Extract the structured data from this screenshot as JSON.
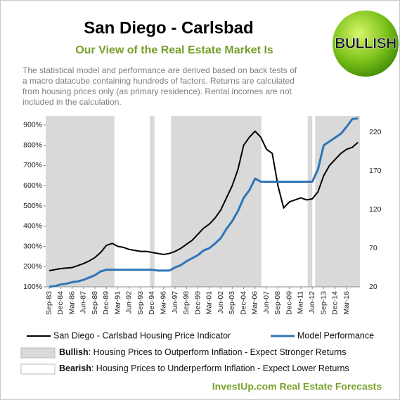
{
  "chart_data": {
    "type": "line",
    "title": "San Diego - Carlsbad",
    "subtitle": "Our View of the Real Estate Market Is",
    "badge": "BULLISH",
    "description": [
      "The  statistical model and performance  are derived  based on back tests of",
      "a macro datacube containing hundreds of factors. Returns are calculated",
      "from housing prices only (as primary residence). Rental incomes are not",
      "included in the calculation."
    ],
    "footer": "InvestUp.com  Real Estate Forecasts",
    "categories": [
      "Sep-83",
      null,
      "Dec-84",
      null,
      "Mar-86",
      null,
      "Jun-87",
      null,
      "Sep-88",
      null,
      "Dec-89",
      null,
      "Mar-91",
      null,
      "Jun-92",
      null,
      "Sep-93",
      null,
      "Dec-94",
      null,
      "Mar-96",
      null,
      "Jun-97",
      null,
      "Sep-98",
      null,
      "Dec-99",
      null,
      "Mar-01",
      null,
      "Jun-02",
      null,
      "Sep-03",
      null,
      "Dec-04",
      null,
      "Mar-06",
      null,
      "Jun-07",
      null,
      "Sep-08",
      null,
      "Dec-09",
      null,
      "Mar-11",
      null,
      "Jun-12",
      null,
      "Sep-13",
      null,
      "Dec-14",
      null,
      "Mar-16",
      null,
      null
    ],
    "series": [
      {
        "name": "San Diego - Carlsbad Housing Price Indicator",
        "color": "#000000",
        "axis": "y",
        "values": [
          180,
          185,
          190,
          193,
          195,
          205,
          215,
          228,
          245,
          270,
          305,
          315,
          300,
          295,
          285,
          280,
          275,
          275,
          270,
          265,
          260,
          265,
          275,
          290,
          310,
          330,
          360,
          390,
          410,
          440,
          480,
          540,
          600,
          680,
          800,
          840,
          870,
          840,
          780,
          760,
          600,
          490,
          520,
          530,
          540,
          530,
          535,
          570,
          650,
          700,
          730,
          760,
          780,
          790,
          815
        ]
      },
      {
        "name": "Model Performance",
        "color": "#2e75b6",
        "axis": "y2",
        "values": [
          20,
          21,
          23,
          24,
          26,
          27,
          29,
          32,
          35,
          40,
          42,
          42,
          42,
          42,
          42,
          42,
          42,
          42,
          42,
          41,
          41,
          41,
          45,
          48,
          53,
          57,
          61,
          67,
          70,
          76,
          83,
          95,
          105,
          118,
          135,
          145,
          160,
          156,
          156,
          156,
          156,
          156,
          156,
          156,
          156,
          156,
          156,
          172,
          203,
          208,
          213,
          218,
          227,
          237,
          238
        ]
      }
    ],
    "regions": [
      {
        "name": "Bullish",
        "description": ":  Housing Prices to Outperform Inflation  - Expect Stronger Returns",
        "color": "#d9d9d9",
        "periods": [
          [
            -0.6,
            11.4
          ],
          [
            17.6,
            18.4
          ],
          [
            21.3,
            37.1
          ],
          [
            45.2,
            46.0
          ],
          [
            46.5,
            54.4
          ]
        ]
      },
      {
        "name": "Bearish",
        "description": ":  Housing Prices to Underperform Inflation  - Expect Lower Returns",
        "color": "#ffffff",
        "periods": []
      }
    ],
    "ylim": [
      100,
      945
    ],
    "yticks": [
      {
        "value": 100,
        "label": "100%"
      },
      {
        "value": 200,
        "label": "200%"
      },
      {
        "value": 300,
        "label": "300%"
      },
      {
        "value": 400,
        "label": "400%"
      },
      {
        "value": 500,
        "label": "500%"
      },
      {
        "value": 600,
        "label": "600%"
      },
      {
        "value": 700,
        "label": "700%"
      },
      {
        "value": 800,
        "label": "800%"
      },
      {
        "value": 900,
        "label": "900%"
      }
    ],
    "y2lim": [
      20,
      241
    ],
    "y2ticks": [
      20,
      70,
      120,
      170,
      220
    ]
  }
}
